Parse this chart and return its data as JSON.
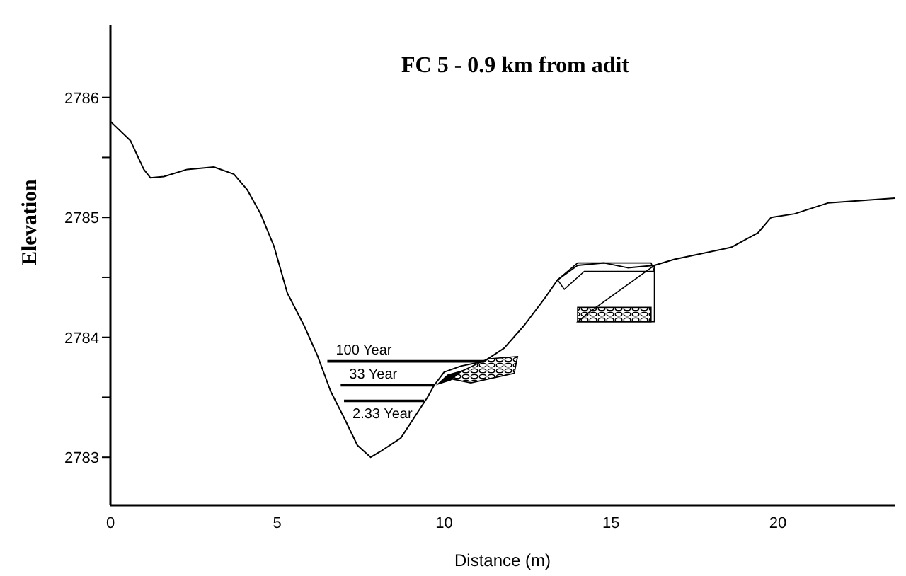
{
  "chart_data": {
    "type": "line",
    "title": "FC 5 - 0.9 km from adit",
    "xlabel": "Distance  (m)",
    "ylabel": "Elevation",
    "xlim": [
      0,
      23.5
    ],
    "ylim": [
      2782.6,
      2786.6
    ],
    "xticks": [
      0,
      5,
      10,
      15,
      20
    ],
    "yticks": [
      2783,
      {
        "value": 2783.5,
        "label": null
      },
      2784,
      {
        "value": 2784.5,
        "label": null
      },
      2785,
      {
        "value": 2785.5,
        "label": null
      },
      2786
    ],
    "grid": false,
    "legend": false,
    "marker": "none",
    "line_style": "solid",
    "series": [
      {
        "color": "#000000",
        "x": [
          0,
          0.6,
          1.0,
          1.2,
          1.6,
          2.3,
          3.1,
          3.7,
          4.1,
          4.5,
          4.9,
          5.3,
          5.8,
          6.2,
          6.6,
          7.0,
          7.4,
          7.8,
          8.1,
          8.7,
          9.1,
          9.5,
          9.7,
          10.0,
          10.5,
          11.2,
          11.8,
          12.4,
          13.0,
          13.4,
          14.0,
          14.8,
          15.5,
          16.3,
          16.9,
          18.6,
          19.4,
          19.8,
          20.5,
          21.5,
          23.5
        ],
        "values": [
          2785.8,
          2785.64,
          2785.4,
          2785.33,
          2785.34,
          2785.4,
          2785.42,
          2785.36,
          2785.23,
          2785.03,
          2784.76,
          2784.37,
          2784.1,
          2783.85,
          2783.55,
          2783.33,
          2783.1,
          2783.0,
          2783.05,
          2783.16,
          2783.33,
          2783.5,
          2783.6,
          2783.71,
          2783.76,
          2783.8,
          2783.91,
          2784.1,
          2784.32,
          2784.48,
          2784.6,
          2784.62,
          2784.58,
          2784.6,
          2784.65,
          2784.75,
          2784.87,
          2785.0,
          2785.03,
          2785.12,
          2785.16
        ]
      },
      {
        "name": "100 Year",
        "color": "#000000",
        "x": [
          6.5,
          11.2
        ],
        "values": [
          2783.8,
          2783.8
        ]
      },
      {
        "name": "33 Year",
        "color": "#000000",
        "x": [
          6.9,
          9.7
        ],
        "values": [
          2783.6,
          2783.6
        ]
      },
      {
        "name": "2.33 Year",
        "color": "#000000",
        "x": [
          7.0,
          9.4
        ],
        "values": [
          2783.47,
          2783.47
        ]
      }
    ]
  }
}
